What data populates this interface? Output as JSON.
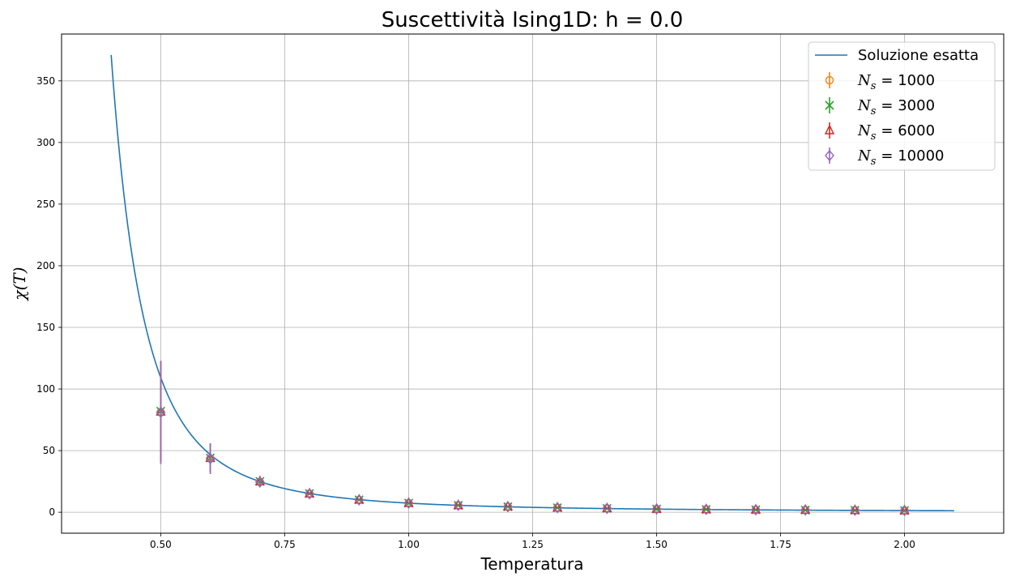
{
  "chart_data": {
    "type": "line",
    "title": "Suscettività Ising1D: h = 0.0",
    "xlabel": "Temperatura",
    "ylabel": "χ(T)",
    "xlim": [
      0.3,
      2.2
    ],
    "ylim": [
      -17,
      388
    ],
    "xticks": [
      0.5,
      0.75,
      1.0,
      1.25,
      1.5,
      1.75,
      2.0
    ],
    "xtick_labels": [
      "0.50",
      "0.75",
      "1.00",
      "1.25",
      "1.50",
      "1.75",
      "2.00"
    ],
    "yticks": [
      0,
      50,
      100,
      150,
      200,
      250,
      300,
      350
    ],
    "ytick_labels": [
      "0",
      "50",
      "100",
      "150",
      "200",
      "250",
      "300",
      "350"
    ],
    "grid": true,
    "legend_position": "top-right",
    "exact": {
      "name": "Soluzione esatta",
      "color": "#1f77b4",
      "x_range": [
        0.4,
        2.1
      ]
    },
    "series": [
      {
        "name": "N_s = 1000",
        "legend_symbol": "N",
        "legend_subscript": "s",
        "legend_value": "= 1000",
        "marker": "circle",
        "color": "#ff7f0e",
        "x": [
          0.5,
          0.6,
          0.7,
          0.8,
          0.9,
          1.0,
          1.1,
          1.2,
          1.3,
          1.4,
          1.5,
          1.6,
          1.7,
          1.8,
          1.9,
          2.0
        ],
        "y": [
          81,
          43.5,
          24.5,
          15,
          10,
          7.4,
          5.6,
          4.5,
          3.7,
          3.1,
          2.6,
          2.3,
          2.0,
          1.8,
          1.6,
          1.4
        ],
        "err": [
          40,
          11,
          2,
          1,
          0.6,
          0.4,
          0.3,
          0.2,
          0.15,
          0.1,
          0.1,
          0.1,
          0.1,
          0.1,
          0.1,
          0.1
        ]
      },
      {
        "name": "N_s = 3000",
        "legend_symbol": "N",
        "legend_subscript": "s",
        "legend_value": "= 3000",
        "marker": "x",
        "color": "#2ca02c",
        "x": [
          0.5,
          0.6,
          0.7,
          0.8,
          0.9,
          1.0,
          1.1,
          1.2,
          1.3,
          1.4,
          1.5,
          1.6,
          1.7,
          1.8,
          1.9,
          2.0
        ],
        "y": [
          82,
          44,
          25,
          15.2,
          10.1,
          7.4,
          5.6,
          4.5,
          3.7,
          3.1,
          2.6,
          2.3,
          2.0,
          1.8,
          1.6,
          1.4
        ],
        "err": [
          40,
          12,
          2,
          1,
          0.6,
          0.4,
          0.3,
          0.2,
          0.15,
          0.1,
          0.1,
          0.1,
          0.1,
          0.1,
          0.1,
          0.1
        ]
      },
      {
        "name": "N_s = 6000",
        "legend_symbol": "N",
        "legend_subscript": "s",
        "legend_value": "= 6000",
        "marker": "triangle",
        "color": "#d62728",
        "x": [
          0.5,
          0.6,
          0.7,
          0.8,
          0.9,
          1.0,
          1.1,
          1.2,
          1.3,
          1.4,
          1.5,
          1.6,
          1.7,
          1.8,
          1.9,
          2.0
        ],
        "y": [
          81.5,
          44,
          25,
          15.1,
          10.1,
          7.4,
          5.6,
          4.5,
          3.7,
          3.1,
          2.6,
          2.3,
          2.0,
          1.8,
          1.6,
          1.4
        ],
        "err": [
          41,
          12,
          2,
          1,
          0.6,
          0.4,
          0.3,
          0.2,
          0.15,
          0.1,
          0.1,
          0.1,
          0.1,
          0.1,
          0.1,
          0.1
        ]
      },
      {
        "name": "N_s = 10000",
        "legend_symbol": "N",
        "legend_subscript": "s",
        "legend_value": "= 10000",
        "marker": "diamond",
        "color": "#9467bd",
        "x": [
          0.5,
          0.6,
          0.7,
          0.8,
          0.9,
          1.0,
          1.1,
          1.2,
          1.3,
          1.4,
          1.5,
          1.6,
          1.7,
          1.8,
          1.9,
          2.0
        ],
        "y": [
          81,
          43.5,
          24.5,
          15,
          10,
          7.4,
          5.6,
          4.5,
          3.7,
          3.1,
          2.6,
          2.3,
          2.0,
          1.8,
          1.6,
          1.4
        ],
        "err": [
          42,
          12.5,
          2,
          1,
          0.6,
          0.4,
          0.3,
          0.2,
          0.15,
          0.1,
          0.1,
          0.1,
          0.1,
          0.1,
          0.1,
          0.1
        ]
      }
    ]
  }
}
